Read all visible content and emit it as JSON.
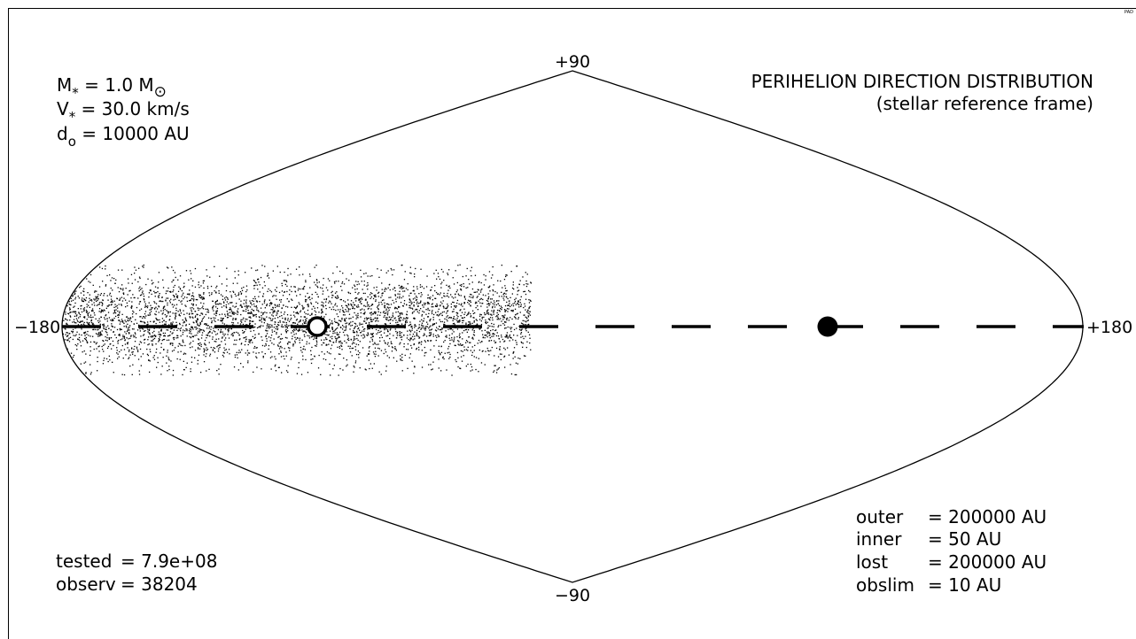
{
  "corner_label": "PAD",
  "chart_data": {
    "type": "scatter",
    "projection": "sinusoidal all-sky (equal-area)",
    "title": "PERIHELION DIRECTION DISTRIBUTION",
    "subtitle": "(stellar reference frame)",
    "xlim": [
      -180,
      180
    ],
    "ylim": [
      -90,
      90
    ],
    "tick_labels": {
      "left": "−180",
      "right": "+180",
      "top": "+90",
      "bottom": "−90"
    },
    "equator_line": "dashed",
    "markers": [
      {
        "kind": "open-circle",
        "lon": -90,
        "lat": 0
      },
      {
        "kind": "filled-circle",
        "lon": 90,
        "lat": 0
      }
    ],
    "point_cloud": {
      "lon_range": [
        -180,
        -15
      ],
      "lat_range": [
        -17,
        22
      ],
      "color": "#000000"
    },
    "params": [
      {
        "sym": "M",
        "sub": "*",
        "eq": " = 1.0 M",
        "unit_sub": "⊙"
      },
      {
        "sym": "V",
        "sub": "*",
        "eq": " = 30.0 km/s"
      },
      {
        "sym": "d",
        "sub": "o",
        "eq": " = 10000 AU"
      }
    ],
    "stats": [
      {
        "label": "tested",
        "value": "= 7.9e+08"
      },
      {
        "label": "observ",
        "value": "= 38204"
      }
    ],
    "radii": [
      {
        "label": "outer",
        "value": "= 200000 AU"
      },
      {
        "label": "inner",
        "value": "= 50 AU"
      },
      {
        "label": "lost",
        "value": "= 200000 AU"
      },
      {
        "label": "obslim",
        "value": "= 10 AU"
      }
    ]
  }
}
